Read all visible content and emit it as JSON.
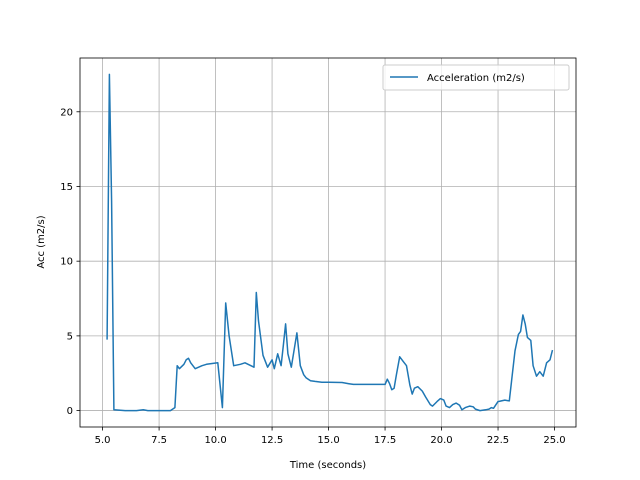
{
  "chart_data": {
    "type": "line",
    "xlabel": "Time (seconds)",
    "ylabel": "Acc (m2/s)",
    "xlim": [
      4.0,
      25.95
    ],
    "ylim": [
      -1.1,
      23.6
    ],
    "xticks": [
      5.0,
      7.5,
      10.0,
      12.5,
      15.0,
      17.5,
      20.0,
      22.5,
      25.0
    ],
    "xtick_labels": [
      "5.0",
      "7.5",
      "10.0",
      "12.5",
      "15.0",
      "17.5",
      "20.0",
      "22.5",
      "25.0"
    ],
    "yticks": [
      0,
      5,
      10,
      15,
      20
    ],
    "ytick_labels": [
      "0",
      "5",
      "10",
      "15",
      "20"
    ],
    "grid": true,
    "legend_position": "top-right",
    "series": [
      {
        "name": "Acceleration (m2/s)",
        "color": "#1f77b4",
        "x": [
          5.2,
          5.3,
          5.4,
          5.5,
          6.0,
          6.5,
          6.8,
          7.0,
          7.5,
          8.0,
          8.2,
          8.3,
          8.4,
          8.6,
          8.7,
          8.8,
          8.9,
          9.1,
          9.4,
          9.6,
          10.1,
          10.3,
          10.45,
          10.6,
          10.8,
          11.1,
          11.3,
          11.7,
          11.8,
          11.9,
          12.1,
          12.3,
          12.5,
          12.6,
          12.75,
          12.9,
          13.0,
          13.1,
          13.2,
          13.35,
          13.6,
          13.75,
          13.9,
          14.0,
          14.2,
          14.4,
          14.7,
          15.0,
          15.6,
          15.9,
          16.1,
          16.5,
          17.0,
          17.5,
          17.6,
          17.7,
          17.8,
          17.9,
          18.0,
          18.15,
          18.3,
          18.45,
          18.6,
          18.7,
          18.8,
          18.95,
          19.15,
          19.3,
          19.5,
          19.6,
          19.8,
          19.95,
          20.1,
          20.2,
          20.35,
          20.5,
          20.65,
          20.8,
          20.9,
          21.05,
          21.25,
          21.4,
          21.5,
          21.7,
          21.95,
          22.1,
          22.2,
          22.3,
          22.5,
          22.8,
          23.0,
          23.1,
          23.25,
          23.4,
          23.5,
          23.6,
          23.7,
          23.8,
          23.95,
          24.05,
          24.2,
          24.35,
          24.5,
          24.65,
          24.8,
          24.9
        ],
        "y": [
          4.8,
          22.5,
          14.0,
          0.05,
          0.0,
          0.0,
          0.05,
          0.0,
          0.0,
          0.0,
          0.2,
          3.0,
          2.8,
          3.1,
          3.4,
          3.5,
          3.2,
          2.8,
          3.0,
          3.1,
          3.2,
          0.2,
          7.2,
          5.0,
          3.0,
          3.1,
          3.2,
          2.9,
          7.9,
          6.0,
          3.7,
          2.9,
          3.4,
          2.8,
          3.8,
          3.0,
          4.4,
          5.8,
          3.8,
          2.9,
          5.2,
          3.0,
          2.4,
          2.2,
          2.0,
          1.95,
          1.9,
          1.9,
          1.88,
          1.8,
          1.75,
          1.75,
          1.75,
          1.75,
          2.1,
          1.8,
          1.4,
          1.5,
          2.4,
          3.6,
          3.3,
          3.0,
          1.7,
          1.1,
          1.5,
          1.6,
          1.3,
          0.9,
          0.4,
          0.3,
          0.6,
          0.8,
          0.7,
          0.3,
          0.2,
          0.4,
          0.5,
          0.35,
          0.05,
          0.2,
          0.3,
          0.25,
          0.1,
          0.0,
          0.05,
          0.1,
          0.2,
          0.15,
          0.6,
          0.7,
          0.65,
          2.0,
          4.0,
          5.1,
          5.3,
          6.4,
          5.8,
          4.9,
          4.7,
          3.0,
          2.3,
          2.6,
          2.3,
          3.2,
          3.4,
          4.0
        ]
      }
    ]
  }
}
